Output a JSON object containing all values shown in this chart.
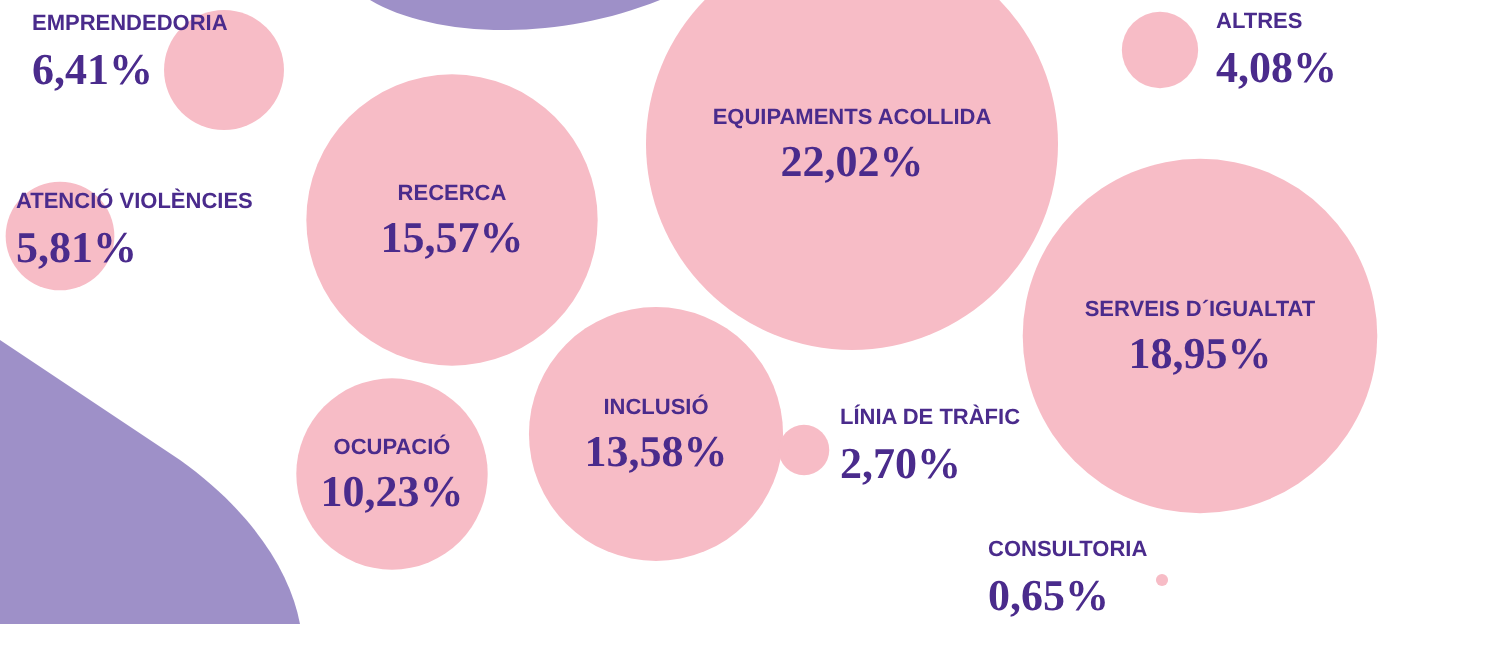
{
  "chart_data": {
    "type": "other",
    "categories": [
      "EMPRENDEDORIA",
      "ATENCIÓ VIOLÈNCIES",
      "RECERCA",
      "OCUPACIÓ",
      "INCLUSIÓ",
      "EQUIPAMENTS ACOLLIDA",
      "LÍNIA DE TRÀFIC",
      "ALTRES",
      "SERVEIS D´IGUALTAT",
      "CONSULTORIA"
    ],
    "values": [
      6.41,
      5.81,
      15.57,
      10.23,
      13.58,
      22.02,
      2.7,
      4.08,
      18.95,
      0.65
    ],
    "value_labels": [
      "6,41%",
      "5,81%",
      "15,57%",
      "10,23%",
      "13,58%",
      "22,02%",
      "2,70%",
      "4,08%",
      "18,95%",
      "0,65%"
    ],
    "color": "#f7bcc6"
  }
}
